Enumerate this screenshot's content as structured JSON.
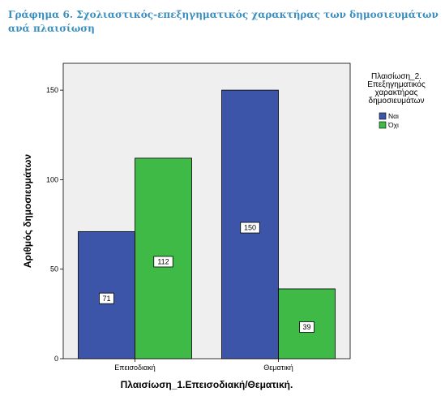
{
  "caption": "Γράφημα 6. Σχολιαστικός-επεξηγηματικός χαρακτήρας των δημοσιευμάτων ανά πλαισίωση",
  "chart_data": {
    "type": "bar",
    "categories": [
      "Επεισοδιακή",
      "Θεματική"
    ],
    "series": [
      {
        "name": "Ναι",
        "values": [
          71,
          150
        ],
        "color": "#3d55a8"
      },
      {
        "name": "Όχι",
        "values": [
          112,
          39
        ],
        "color": "#3fba46"
      }
    ],
    "xlabel": "Πλαισίωση_1.Επεισοδιακή/Θεματική.",
    "ylabel": "Αριθμός δημοσιευμάτων",
    "ylim": [
      0,
      165
    ],
    "yticks": [
      0,
      50,
      100,
      150
    ],
    "legend_title": [
      "Πλαισίωση_2.",
      "Επεξηγηματικός",
      "χαρακτήρας",
      "δημοσιευμάτων"
    ],
    "legend_position": "right",
    "plot_background": "#efefef",
    "grid": false
  }
}
